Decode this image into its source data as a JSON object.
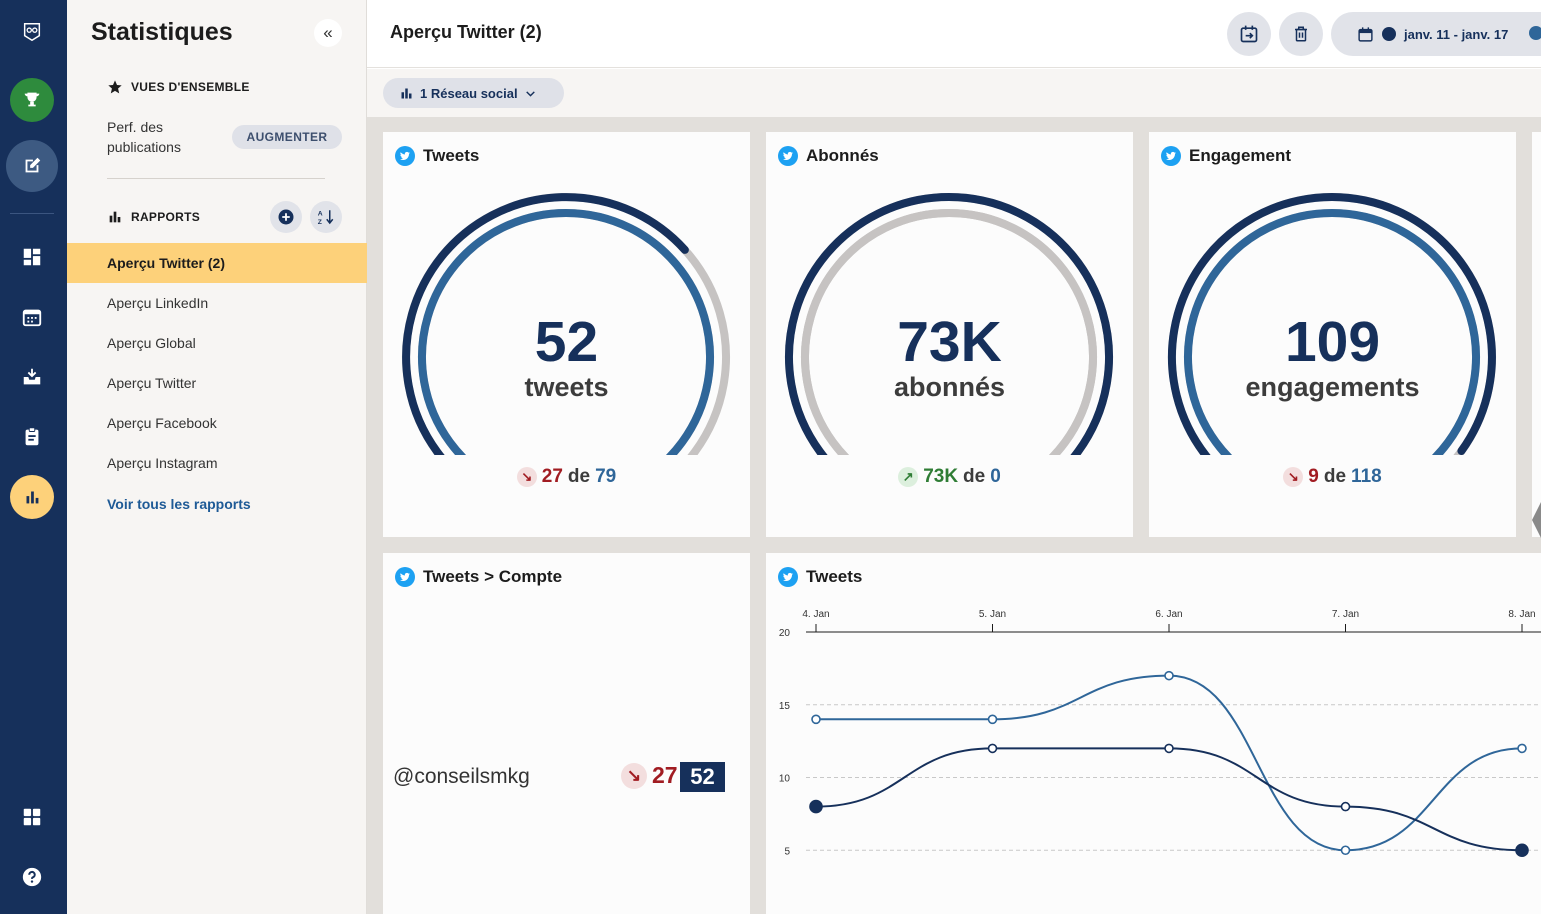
{
  "sidebar": {
    "title": "Statistiques",
    "overview_header": "VUES D'ENSEMBLE",
    "perf_label": "Perf. des publications",
    "upgrade_label": "AUGMENTER",
    "reports_header": "RAPPORTS",
    "reports": [
      {
        "label": "Aperçu Twitter (2)",
        "active": true
      },
      {
        "label": "Aperçu LinkedIn",
        "active": false
      },
      {
        "label": "Aperçu Global",
        "active": false
      },
      {
        "label": "Aperçu Twitter",
        "active": false
      },
      {
        "label": "Aperçu Facebook",
        "active": false
      },
      {
        "label": "Aperçu Instagram",
        "active": false
      }
    ],
    "see_all": "Voir tous les rapports"
  },
  "header": {
    "title": "Aperçu Twitter (2)",
    "date_range": "janv. 11 - janv. 17"
  },
  "filter": {
    "network_label": "1 Réseau social"
  },
  "cards": [
    {
      "title": "Tweets",
      "value": "52",
      "unit": "tweets",
      "delta": "27",
      "direction": "down",
      "of_word": "de",
      "previous": "79",
      "gauge_current": 0.66,
      "gauge_previous": 1.0
    },
    {
      "title": "Abonnés",
      "value": "73K",
      "unit": "abonnés",
      "delta": "73K",
      "direction": "up",
      "of_word": "de",
      "previous": "0",
      "gauge_current": 1.0,
      "gauge_previous": 1.0
    },
    {
      "title": "Engagement",
      "value": "109",
      "unit": "engagements",
      "delta": "9",
      "direction": "down",
      "of_word": "de",
      "previous": "118",
      "gauge_current": 0.92,
      "gauge_previous": 1.0
    }
  ],
  "account_card": {
    "title": "Tweets > Compte",
    "handle": "@conseilsmkg",
    "delta": "27",
    "value": "52"
  },
  "chart_card": {
    "title": "Tweets"
  },
  "chart_data": {
    "type": "line",
    "x": [
      "4. Jan",
      "5. Jan",
      "6. Jan",
      "7. Jan",
      "8. Jan"
    ],
    "ylim": [
      0,
      20
    ],
    "yticks": [
      5,
      10,
      15,
      20
    ],
    "grid": true,
    "series": [
      {
        "values": [
          14,
          14,
          17,
          5,
          12
        ],
        "color": "#2f6699"
      },
      {
        "values": [
          8,
          12,
          12,
          8,
          5
        ],
        "color": "#16305b"
      }
    ]
  },
  "colors": {
    "rail": "#16305b",
    "accent": "#fdd17a",
    "gauge_dark": "#16305b",
    "gauge_light": "#2f6699",
    "gauge_track": "#c6c3c2",
    "down": "#a11c22",
    "up": "#2f7d35"
  }
}
